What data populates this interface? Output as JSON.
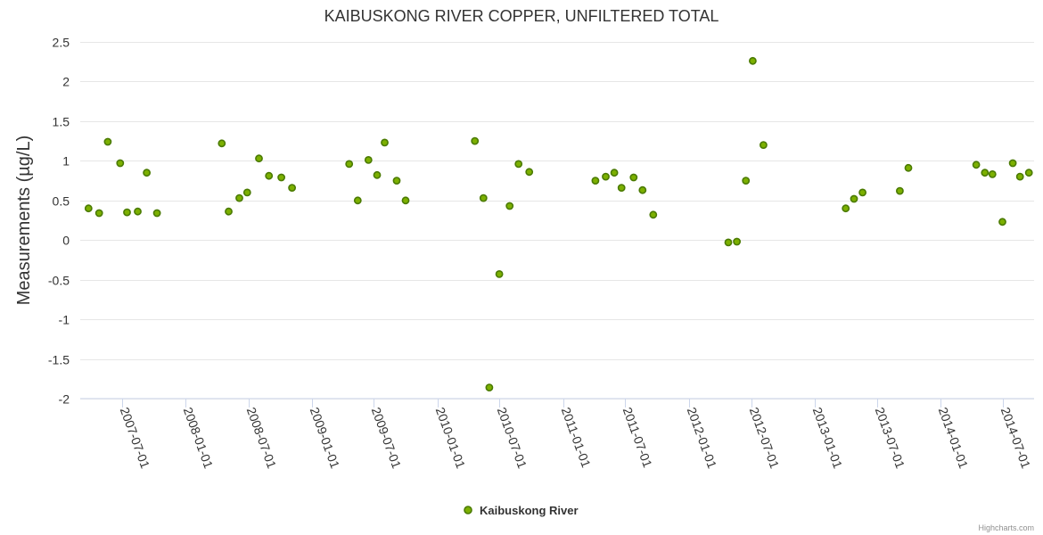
{
  "chart_data": {
    "type": "scatter",
    "title": "KAIBUSKONG RIVER COPPER, UNFILTERED TOTAL",
    "xlabel": "",
    "ylabel": "Measurements (µg/L)",
    "ylim": [
      -2,
      2.5
    ],
    "yticks": [
      "2.5",
      "2",
      "1.5",
      "1",
      "0.5",
      "0",
      "-0.5",
      "-1",
      "-1.5",
      "-2"
    ],
    "ytick_values": [
      2.5,
      2,
      1.5,
      1,
      0.5,
      0,
      -0.5,
      -1,
      -1.5,
      -2
    ],
    "xlim": [
      "2007-03-01",
      "2014-09-30"
    ],
    "xticks": [
      "2007-07-01",
      "2008-01-01",
      "2008-07-01",
      "2009-01-01",
      "2009-07-01",
      "2010-01-01",
      "2010-07-01",
      "2011-01-01",
      "2011-07-01",
      "2012-01-01",
      "2012-07-01",
      "2013-01-01",
      "2013-07-01",
      "2014-01-01",
      "2014-07-01"
    ],
    "color": "#7cb000",
    "marker_stroke": "#4a7a00",
    "legend": "bottom-center",
    "series": [
      {
        "name": "Kaibuskong River",
        "points": [
          {
            "x": "2007-03-25",
            "y": 0.4
          },
          {
            "x": "2007-04-25",
            "y": 0.34
          },
          {
            "x": "2007-05-20",
            "y": 1.24
          },
          {
            "x": "2007-06-25",
            "y": 0.97
          },
          {
            "x": "2007-07-15",
            "y": 0.35
          },
          {
            "x": "2007-08-15",
            "y": 0.36
          },
          {
            "x": "2007-09-10",
            "y": 0.85
          },
          {
            "x": "2007-10-10",
            "y": 0.34
          },
          {
            "x": "2008-04-15",
            "y": 1.22
          },
          {
            "x": "2008-05-05",
            "y": 0.36
          },
          {
            "x": "2008-06-05",
            "y": 0.53
          },
          {
            "x": "2008-06-28",
            "y": 0.6
          },
          {
            "x": "2008-08-01",
            "y": 1.03
          },
          {
            "x": "2008-08-30",
            "y": 0.81
          },
          {
            "x": "2008-10-05",
            "y": 0.79
          },
          {
            "x": "2008-11-05",
            "y": 0.66
          },
          {
            "x": "2009-04-20",
            "y": 0.96
          },
          {
            "x": "2009-05-15",
            "y": 0.5
          },
          {
            "x": "2009-06-15",
            "y": 1.01
          },
          {
            "x": "2009-07-10",
            "y": 0.82
          },
          {
            "x": "2009-08-01",
            "y": 1.23
          },
          {
            "x": "2009-09-05",
            "y": 0.75
          },
          {
            "x": "2009-10-01",
            "y": 0.5
          },
          {
            "x": "2010-04-20",
            "y": 1.25
          },
          {
            "x": "2010-05-15",
            "y": 0.53
          },
          {
            "x": "2010-06-01",
            "y": -1.86
          },
          {
            "x": "2010-06-30",
            "y": -0.43
          },
          {
            "x": "2010-07-30",
            "y": 0.43
          },
          {
            "x": "2010-08-25",
            "y": 0.96
          },
          {
            "x": "2010-09-25",
            "y": 0.86
          },
          {
            "x": "2011-04-05",
            "y": 0.75
          },
          {
            "x": "2011-05-05",
            "y": 0.8
          },
          {
            "x": "2011-05-30",
            "y": 0.85
          },
          {
            "x": "2011-06-20",
            "y": 0.66
          },
          {
            "x": "2011-07-25",
            "y": 0.79
          },
          {
            "x": "2011-08-20",
            "y": 0.63
          },
          {
            "x": "2011-09-20",
            "y": 0.32
          },
          {
            "x": "2012-04-25",
            "y": -0.03
          },
          {
            "x": "2012-05-20",
            "y": -0.02
          },
          {
            "x": "2012-06-15",
            "y": 0.75
          },
          {
            "x": "2012-07-05",
            "y": 2.26
          },
          {
            "x": "2012-08-05",
            "y": 1.2
          },
          {
            "x": "2013-04-01",
            "y": 0.4
          },
          {
            "x": "2013-04-25",
            "y": 0.52
          },
          {
            "x": "2013-05-20",
            "y": 0.6
          },
          {
            "x": "2013-09-05",
            "y": 0.62
          },
          {
            "x": "2013-09-30",
            "y": 0.91
          },
          {
            "x": "2014-04-15",
            "y": 0.95
          },
          {
            "x": "2014-05-10",
            "y": 0.85
          },
          {
            "x": "2014-06-01",
            "y": 0.83
          },
          {
            "x": "2014-06-30",
            "y": 0.23
          },
          {
            "x": "2014-07-30",
            "y": 0.97
          },
          {
            "x": "2014-08-20",
            "y": 0.8
          },
          {
            "x": "2014-09-15",
            "y": 0.85
          }
        ]
      }
    ]
  },
  "credits": "Highcharts.com"
}
